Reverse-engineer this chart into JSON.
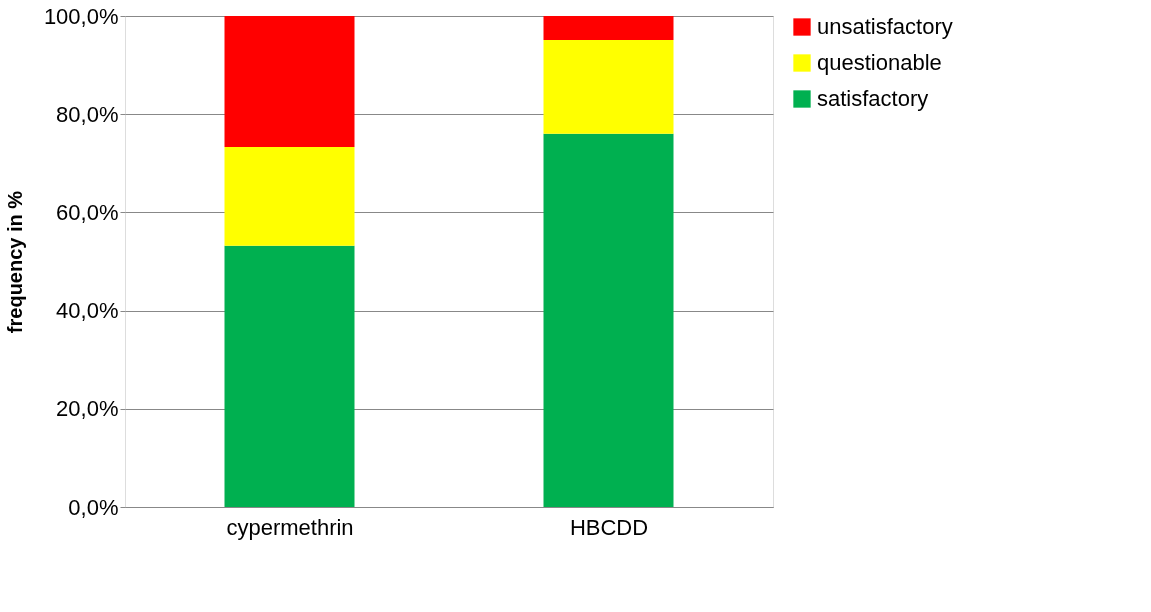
{
  "chart_data": {
    "type": "bar",
    "stacked": true,
    "ylabel": "frequency in %",
    "categories": [
      "cypermethrin",
      "HBCDD"
    ],
    "series": [
      {
        "name": "satisfactory",
        "color": "#00b050",
        "values": [
          53.2,
          76.0
        ]
      },
      {
        "name": "questionable",
        "color": "#ffff00",
        "values": [
          20.1,
          19.1
        ]
      },
      {
        "name": "unsatisfactory",
        "color": "#ff0000",
        "values": [
          26.7,
          4.9
        ]
      }
    ],
    "ylim": [
      0,
      100
    ],
    "yticks": [
      {
        "value": 0,
        "label": "0,0%"
      },
      {
        "value": 20,
        "label": "20,0%"
      },
      {
        "value": 40,
        "label": "40,0%"
      },
      {
        "value": 60,
        "label": "60,0%"
      },
      {
        "value": 80,
        "label": "80,0%"
      },
      {
        "value": 100,
        "label": "100,0%"
      }
    ],
    "grid": "y",
    "legend": "right"
  }
}
